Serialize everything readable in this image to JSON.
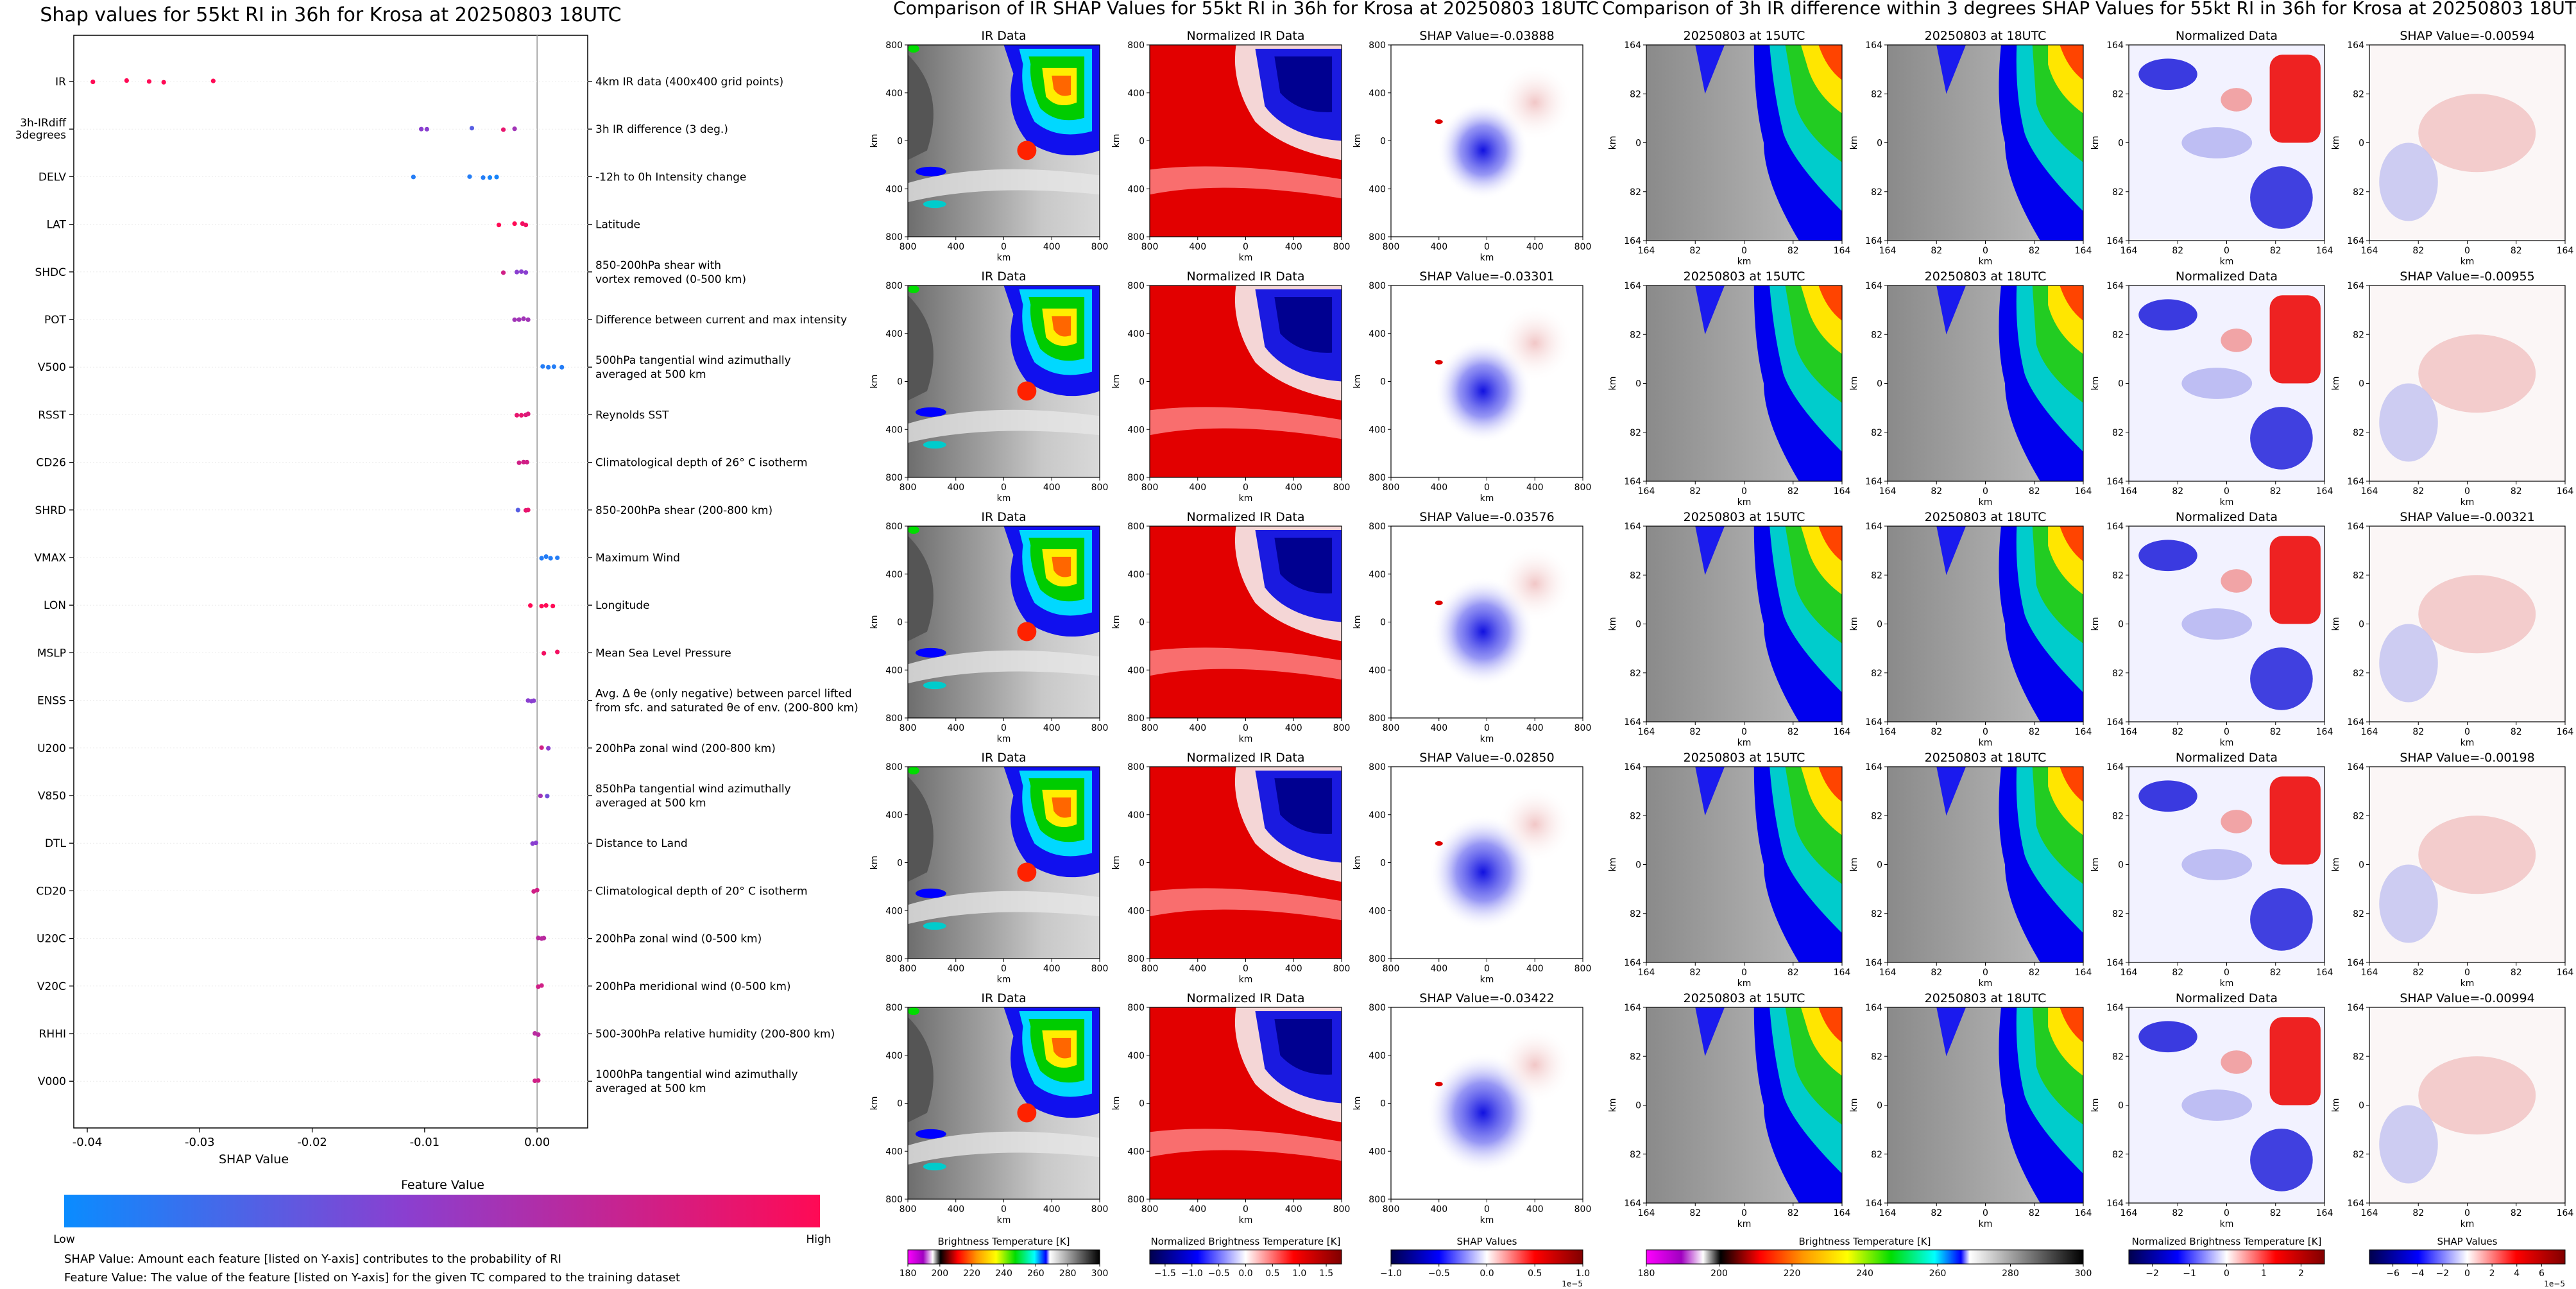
{
  "colors": {
    "low": "#1e88ff",
    "mid": "#8b3bd0",
    "high": "#ff0d57",
    "axis": "#000000",
    "grid": "#e8e8e8"
  },
  "chart_data": [
    {
      "type": "scatter",
      "title": "Shap values for 55kt RI in 36h for Krosa at 20250803 18UTC",
      "xlabel": "SHAP Value",
      "xlim": [
        -0.0412,
        0.0045
      ],
      "xticks": [
        "-0.04",
        "-0.03",
        "-0.02",
        "-0.01",
        "0.00"
      ],
      "xtick_values": [
        -0.04,
        -0.03,
        -0.02,
        -0.01,
        0.0
      ],
      "colorbar_label": "Feature Value",
      "colorbar_low": "Low",
      "colorbar_high": "High",
      "notes": [
        "SHAP Value: Amount each feature [listed on Y-axis] contributes to the probability of RI",
        "Feature Value: The value of the feature [listed on Y-axis] for the given TC compared to the training dataset"
      ],
      "features": [
        {
          "name": "IR",
          "desc": [
            "4km IR data (400x400 grid points)"
          ],
          "points": [
            [
              -0.0395,
              1
            ],
            [
              -0.0365,
              1
            ],
            [
              -0.0345,
              1
            ],
            [
              -0.0332,
              1
            ],
            [
              -0.0288,
              1
            ]
          ]
        },
        {
          "name": "3h-IRdiff\n3degrees",
          "desc": [
            "3h IR difference (3 deg.)"
          ],
          "points": [
            [
              -0.0103,
              0.5
            ],
            [
              -0.0098,
              0.5
            ],
            [
              -0.0058,
              0.3
            ],
            [
              -0.003,
              0.9
            ],
            [
              -0.002,
              0.6
            ]
          ]
        },
        {
          "name": "DELV",
          "desc": [
            "-12h to 0h Intensity change"
          ],
          "points": [
            [
              -0.011,
              0.1
            ],
            [
              -0.006,
              0.1
            ],
            [
              -0.0048,
              0.1
            ],
            [
              -0.0042,
              0.05
            ],
            [
              -0.0036,
              0.05
            ]
          ]
        },
        {
          "name": "LAT",
          "desc": [
            "Latitude"
          ],
          "points": [
            [
              -0.0034,
              1
            ],
            [
              -0.002,
              1
            ],
            [
              -0.0013,
              0.95
            ],
            [
              -0.001,
              0.95
            ]
          ]
        },
        {
          "name": "SHDC",
          "desc": [
            "850-200hPa shear with",
            "vortex removed (0-500 km)"
          ],
          "points": [
            [
              -0.003,
              0.8
            ],
            [
              -0.0018,
              0.5
            ],
            [
              -0.0014,
              0.5
            ],
            [
              -0.001,
              0.5
            ]
          ]
        },
        {
          "name": "POT",
          "desc": [
            "Difference between current and max intensity"
          ],
          "points": [
            [
              -0.002,
              0.6
            ],
            [
              -0.0016,
              0.6
            ],
            [
              -0.0012,
              0.6
            ],
            [
              -0.0008,
              0.6
            ]
          ]
        },
        {
          "name": "V500",
          "desc": [
            "500hPa tangential wind azimuthally",
            "averaged at 500 km"
          ],
          "points": [
            [
              0.0005,
              0.1
            ],
            [
              0.001,
              0.1
            ],
            [
              0.0015,
              0.1
            ],
            [
              0.0022,
              0.1
            ]
          ]
        },
        {
          "name": "RSST",
          "desc": [
            "Reynolds SST"
          ],
          "points": [
            [
              -0.0018,
              0.9
            ],
            [
              -0.0014,
              0.9
            ],
            [
              -0.001,
              0.85
            ],
            [
              -0.0008,
              0.85
            ]
          ]
        },
        {
          "name": "CD26",
          "desc": [
            "Climatological depth of 26° C isotherm"
          ],
          "points": [
            [
              -0.0016,
              0.8
            ],
            [
              -0.0012,
              0.8
            ],
            [
              -0.0009,
              0.8
            ]
          ]
        },
        {
          "name": "SHRD",
          "desc": [
            "850-200hPa shear (200-800 km)"
          ],
          "points": [
            [
              -0.0017,
              0.3
            ],
            [
              -0.001,
              0.9
            ],
            [
              -0.0008,
              0.9
            ]
          ]
        },
        {
          "name": "VMAX",
          "desc": [
            "Maximum Wind"
          ],
          "points": [
            [
              0.0004,
              0.1
            ],
            [
              0.0008,
              0.1
            ],
            [
              0.0012,
              0.1
            ],
            [
              0.0018,
              0.1
            ]
          ]
        },
        {
          "name": "LON",
          "desc": [
            "Longitude"
          ],
          "points": [
            [
              -0.0006,
              1
            ],
            [
              0.0004,
              1
            ],
            [
              0.0008,
              1
            ],
            [
              0.0014,
              1
            ]
          ]
        },
        {
          "name": "MSLP",
          "desc": [
            "Mean Sea Level Pressure"
          ],
          "points": [
            [
              0.0006,
              0.95
            ],
            [
              0.0018,
              0.95
            ]
          ]
        },
        {
          "name": "ENSS",
          "desc": [
            "Avg. Δ θe (only negative) between parcel lifted",
            "from sfc. and saturated θe of env. (200-800 km)"
          ],
          "points": [
            [
              -0.0008,
              0.5
            ],
            [
              -0.0005,
              0.5
            ],
            [
              -0.0003,
              0.5
            ]
          ]
        },
        {
          "name": "U200",
          "desc": [
            "200hPa zonal wind (200-800 km)"
          ],
          "points": [
            [
              0.0004,
              0.8
            ],
            [
              0.001,
              0.5
            ]
          ]
        },
        {
          "name": "V850",
          "desc": [
            "850hPa tangential wind azimuthally",
            "averaged at 500 km"
          ],
          "points": [
            [
              0.0003,
              0.6
            ],
            [
              0.0009,
              0.4
            ]
          ]
        },
        {
          "name": "DTL",
          "desc": [
            "Distance to Land"
          ],
          "points": [
            [
              -0.0004,
              0.5
            ],
            [
              -0.0001,
              0.5
            ]
          ]
        },
        {
          "name": "CD20",
          "desc": [
            "Climatological depth of 20° C isotherm"
          ],
          "points": [
            [
              -0.0003,
              0.8
            ],
            [
              0.0,
              0.8
            ]
          ]
        },
        {
          "name": "U20C",
          "desc": [
            "200hPa zonal wind (0-500 km)"
          ],
          "points": [
            [
              0.0001,
              0.7
            ],
            [
              0.0004,
              0.7
            ],
            [
              0.0006,
              0.7
            ]
          ]
        },
        {
          "name": "V20C",
          "desc": [
            "200hPa meridional wind (0-500 km)"
          ],
          "points": [
            [
              0.0001,
              0.8
            ],
            [
              0.0004,
              0.8
            ]
          ]
        },
        {
          "name": "RHHI",
          "desc": [
            "500-300hPa relative humidity (200-800 km)"
          ],
          "points": [
            [
              -0.0002,
              0.7
            ],
            [
              0.0001,
              0.7
            ]
          ]
        },
        {
          "name": "V000",
          "desc": [
            "1000hPa tangential wind azimuthally",
            "averaged at 500 km"
          ],
          "points": [
            [
              -0.0002,
              0.8
            ],
            [
              0.0001,
              0.8
            ]
          ]
        }
      ]
    },
    {
      "type": "heatmap",
      "title": "Comparison of IR SHAP Values for 55kt RI in 36h for Krosa at 20250803 18UTC",
      "columns": [
        "IR Data",
        "Normalized IR Data",
        "SHAP Value=-0.03888"
      ],
      "rows": [
        [
          "IR Data",
          "Normalized IR Data",
          "SHAP Value=-0.03888"
        ],
        [
          "IR Data",
          "Normalized IR Data",
          "SHAP Value=-0.03301"
        ],
        [
          "IR Data",
          "Normalized IR Data",
          "SHAP Value=-0.03576"
        ],
        [
          "IR Data",
          "Normalized IR Data",
          "SHAP Value=-0.02850"
        ],
        [
          "IR Data",
          "Normalized IR Data",
          "SHAP Value=-0.03422"
        ]
      ],
      "xticks": [
        "800",
        "400",
        "0",
        "400",
        "800"
      ],
      "yticks": [
        "800",
        "400",
        "0",
        "400",
        "800"
      ],
      "axis_label": "km",
      "colorbars": [
        {
          "label": "Brightness Temperature [K]",
          "ticks": [
            "180",
            "200",
            "220",
            "240",
            "260",
            "280",
            "300"
          ]
        },
        {
          "label": "Normalized Brightness Temperature [K]",
          "ticks": [
            "−1.5",
            "−1.0",
            "−0.5",
            "0.0",
            "0.5",
            "1.0",
            "1.5"
          ]
        },
        {
          "label": "SHAP Values",
          "ticks": [
            "−1.0",
            "−0.5",
            "0.0",
            "0.5",
            "1.0"
          ],
          "scale": "1e−5"
        }
      ]
    },
    {
      "type": "heatmap",
      "title": "Comparison of 3h IR difference within 3 degrees SHAP Values for 55kt RI in 36h for Krosa at 20250803 18UTC",
      "rows": [
        [
          "20250803 at 15UTC",
          "20250803 at 18UTC",
          "Normalized Data",
          "SHAP Value=-0.00594"
        ],
        [
          "20250803 at 15UTC",
          "20250803 at 18UTC",
          "Normalized Data",
          "SHAP Value=-0.00955"
        ],
        [
          "20250803 at 15UTC",
          "20250803 at 18UTC",
          "Normalized Data",
          "SHAP Value=-0.00321"
        ],
        [
          "20250803 at 15UTC",
          "20250803 at 18UTC",
          "Normalized Data",
          "SHAP Value=-0.00198"
        ],
        [
          "20250803 at 15UTC",
          "20250803 at 18UTC",
          "Normalized Data",
          "SHAP Value=-0.00994"
        ]
      ],
      "xticks": [
        "164",
        "82",
        "0",
        "82",
        "164"
      ],
      "yticks": [
        "164",
        "82",
        "0",
        "82",
        "164"
      ],
      "axis_label": "km",
      "colorbars": [
        {
          "label": "Brightness Temperature [K]",
          "ticks": [
            "180",
            "200",
            "220",
            "240",
            "260",
            "280",
            "300"
          ]
        },
        {
          "label": "Normalized Brightness Temperature [K]",
          "ticks": [
            "−2",
            "−1",
            "0",
            "1",
            "2"
          ]
        },
        {
          "label": "SHAP Values",
          "ticks": [
            "−6",
            "−4",
            "−2",
            "0",
            "2",
            "4",
            "6"
          ],
          "scale": "1e−5"
        }
      ]
    }
  ]
}
